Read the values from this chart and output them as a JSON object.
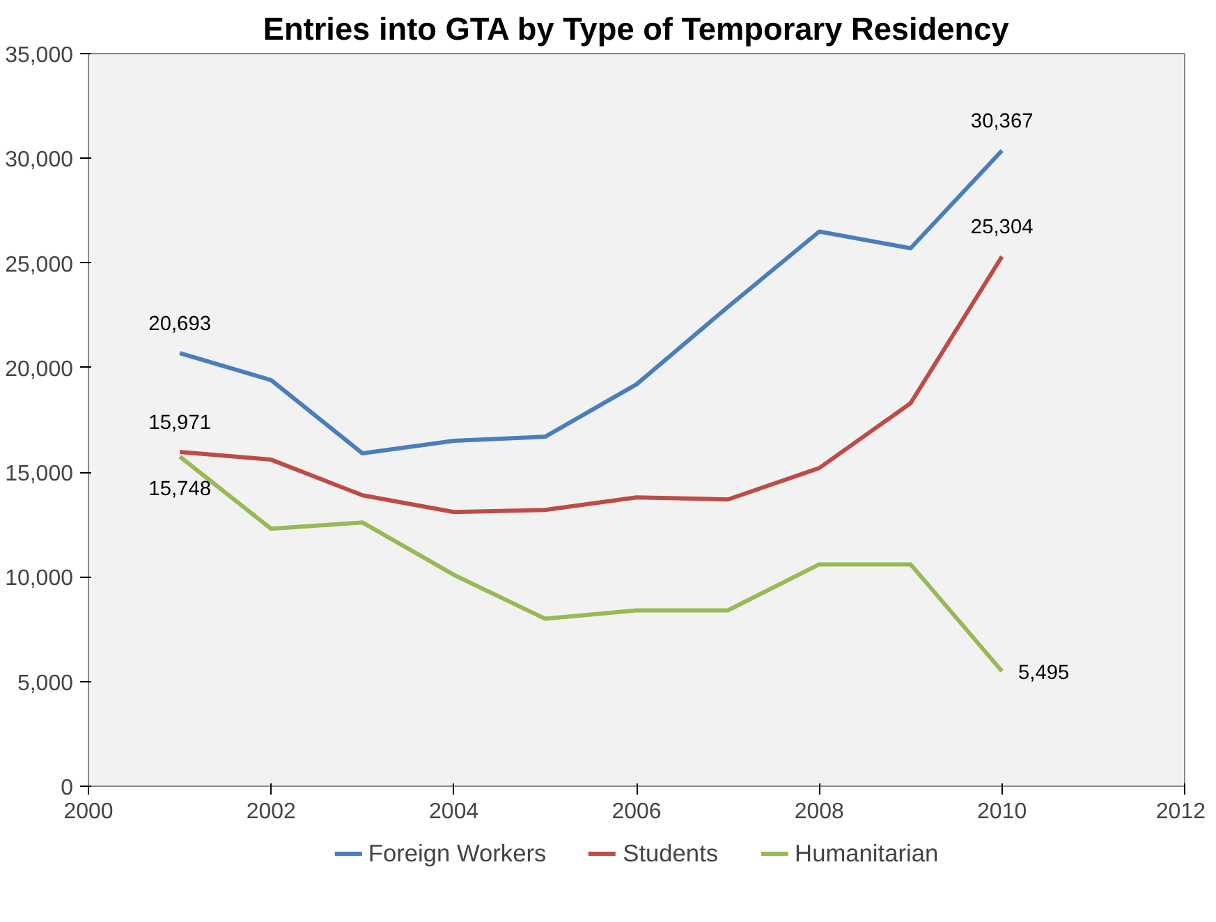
{
  "chart_data": {
    "type": "line",
    "title": "Entries into GTA by Type of Temporary Residency",
    "x": [
      2001,
      2002,
      2003,
      2004,
      2005,
      2006,
      2007,
      2008,
      2009,
      2010
    ],
    "xlim": [
      2000,
      2012
    ],
    "xticks": [
      2000,
      2002,
      2004,
      2006,
      2008,
      2010,
      2012
    ],
    "ylim": [
      0,
      35000
    ],
    "yticks": [
      {
        "value": 0,
        "label": "0"
      },
      {
        "value": 5000,
        "label": "5,000"
      },
      {
        "value": 10000,
        "label": "10,000"
      },
      {
        "value": 15000,
        "label": "15,000"
      },
      {
        "value": 20000,
        "label": "20,000"
      },
      {
        "value": 25000,
        "label": "25,000"
      },
      {
        "value": 30000,
        "label": "30,000"
      },
      {
        "value": 35000,
        "label": "35,000"
      }
    ],
    "series": [
      {
        "name": "Foreign Workers",
        "color": "#4a7ebb",
        "values": [
          20693,
          19400,
          15900,
          16500,
          16700,
          19200,
          22900,
          26500,
          25700,
          30367
        ],
        "value_labels": [
          "20,693",
          null,
          null,
          null,
          null,
          null,
          null,
          null,
          null,
          "30,367"
        ]
      },
      {
        "name": "Students",
        "color": "#be4b48",
        "values": [
          15971,
          15600,
          13900,
          13100,
          13200,
          13800,
          13700,
          15200,
          18300,
          25304
        ],
        "value_labels": [
          "15,971",
          null,
          null,
          null,
          null,
          null,
          null,
          null,
          null,
          "25,304"
        ]
      },
      {
        "name": "Humanitarian",
        "color": "#98b954",
        "values": [
          15748,
          12300,
          12600,
          10100,
          8000,
          8400,
          8400,
          10600,
          10600,
          5495
        ],
        "value_labels": [
          "15,748",
          null,
          null,
          null,
          null,
          null,
          null,
          null,
          null,
          "5,495"
        ]
      }
    ],
    "grid": false,
    "legend": "bottom",
    "marker": "none",
    "line_style": "solid"
  }
}
